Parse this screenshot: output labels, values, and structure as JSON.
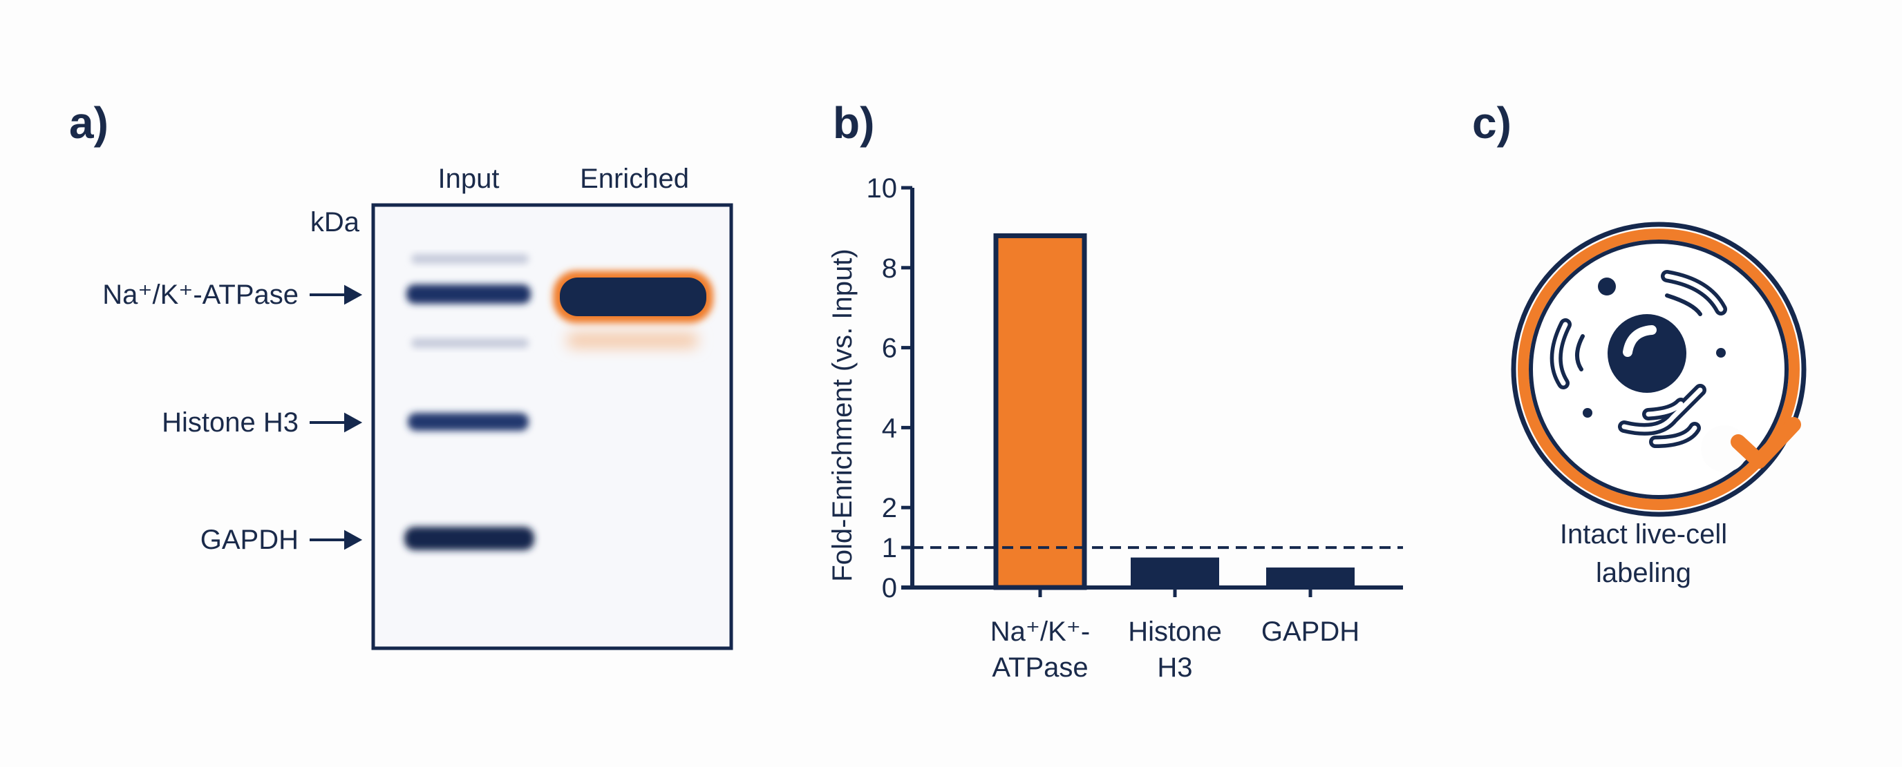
{
  "colors": {
    "navy": "#15284d",
    "orange": "#f07d2a",
    "background": "#fdfdfd"
  },
  "panel_a": {
    "label": "a)",
    "lanes": [
      "Input",
      "Enriched"
    ],
    "unit": "kDa",
    "markers": [
      "Na⁺/K⁺-ATPase",
      "Histone H3",
      "GAPDH"
    ]
  },
  "panel_b": {
    "label": "b)"
  },
  "panel_c": {
    "label": "c)",
    "icon": "cell-with-checkmark-icon",
    "caption_lines": [
      "Intact live-cell",
      "labeling"
    ]
  },
  "chart_data": {
    "type": "bar",
    "categories": [
      [
        "Na⁺/K⁺-",
        "ATPase"
      ],
      [
        "Histone",
        "H3"
      ],
      [
        "GAPDH"
      ]
    ],
    "values": [
      8.8,
      0.75,
      0.5
    ],
    "bar_colors": [
      "#f07d2a",
      "#15284d",
      "#15284d"
    ],
    "ylabel": "Fold-Enrichment (vs. Input)",
    "ylim": [
      0,
      10
    ],
    "yticks": [
      "0",
      "1",
      "2",
      "4",
      "6",
      "8",
      "10"
    ],
    "reference_line": {
      "y": 1,
      "style": "dashed"
    },
    "grid": false
  }
}
